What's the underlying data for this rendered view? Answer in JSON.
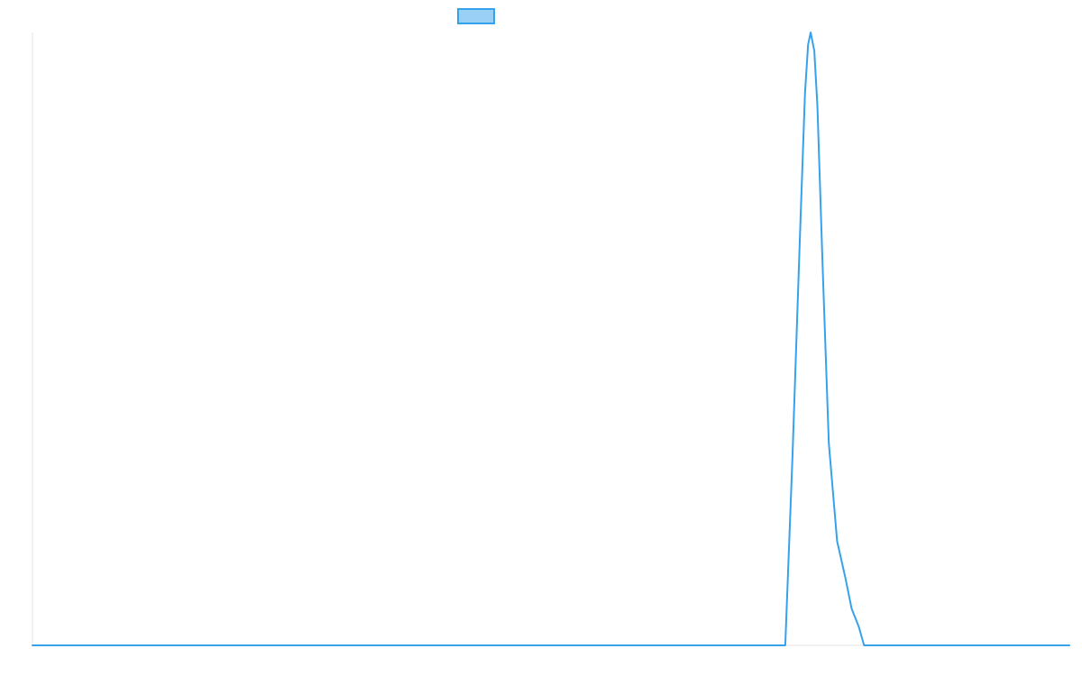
{
  "chart_data": {
    "type": "line",
    "title": "",
    "xlabel": "",
    "ylabel": "",
    "legend": {
      "placement": "top-center",
      "swatch_fill": "#9ad0f5",
      "swatch_stroke": "#36a2eb"
    },
    "colors": {
      "line": "#36a2eb",
      "axis": "#e6e6e6"
    },
    "grid": false,
    "xlim": [
      0,
      1
    ],
    "ylim": [
      0,
      1
    ],
    "series": [
      {
        "x": [
          0,
          0.726,
          0.733,
          0.74,
          0.745,
          0.748,
          0.7505,
          0.754,
          0.757,
          0.762,
          0.768,
          0.776,
          0.784,
          0.79,
          0.797,
          0.802,
          0.83,
          0.9,
          1
        ],
        "y": [
          0,
          0,
          0.31,
          0.66,
          0.9,
          0.98,
          1,
          0.97,
          0.88,
          0.62,
          0.33,
          0.17,
          0.11,
          0.06,
          0.03,
          0,
          0,
          0,
          0
        ]
      }
    ]
  }
}
